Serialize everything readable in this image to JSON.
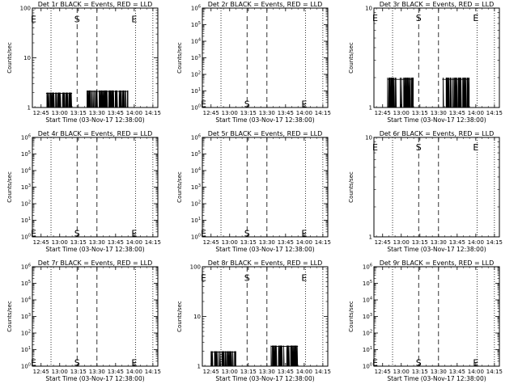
{
  "page": {
    "xlabel": "Start Time (03-Nov-17 12:38:00)",
    "ylabel": "Counts/sec",
    "x_ticks": [
      "12:45",
      "13:00",
      "13:15",
      "13:30",
      "13:45",
      "14:00",
      "14:15"
    ],
    "marker_S": "S",
    "marker_E": "E"
  },
  "chart_data": [
    {
      "type": "line",
      "title": "Det 1r BLACK = Events, RED = LLD",
      "xlabel": "Start Time (03-Nov-17 12:38:00)",
      "ylabel": "Counts/sec",
      "y_scale": "log",
      "y_ticks": [
        "1",
        "10",
        "100"
      ],
      "y_tick_values": [
        1,
        10,
        100
      ],
      "ylim": [
        1,
        100
      ],
      "xlim": [
        "12:38",
        "14:19"
      ],
      "dashed_lines": [
        "13:14",
        "13:30"
      ],
      "dotted_lines": [
        "12:53",
        "14:01",
        "14:15"
      ],
      "markers": [
        {
          "text": "E",
          "x": "12:39",
          "y": 60
        },
        {
          "text": "S",
          "x": "13:14",
          "y": 60
        },
        {
          "text": "E",
          "x": "14:00",
          "y": 60
        }
      ],
      "series": [
        {
          "color": "#000000",
          "segments": [
            {
              "from": "12:49",
              "to": "13:10",
              "low": 1,
              "high": 2
            },
            {
              "from": "13:22",
              "to": "13:55",
              "low": 1,
              "high": 2.2
            }
          ]
        }
      ]
    },
    {
      "type": "line",
      "title": "Det 2r BLACK = Events, RED = LLD",
      "xlabel": "Start Time (03-Nov-17 12:38:00)",
      "ylabel": "Counts/sec",
      "y_scale": "log",
      "y_ticks": [
        "10^0",
        "10^1",
        "10^2",
        "10^3",
        "10^4",
        "10^5",
        "10^6"
      ],
      "y_tick_values": [
        1,
        10,
        100,
        1000,
        10000,
        100000,
        1000000
      ],
      "ylim": [
        1,
        1000000
      ],
      "xlim": [
        "12:38",
        "14:19"
      ],
      "dashed_lines": [
        "13:14",
        "13:30"
      ],
      "dotted_lines": [
        "12:53",
        "14:01",
        "14:15"
      ],
      "markers": [
        {
          "text": "E",
          "x": "12:39",
          "y": 1.7
        },
        {
          "text": "S",
          "x": "13:14",
          "y": 1.7
        },
        {
          "text": "E",
          "x": "14:00",
          "y": 1.7
        }
      ],
      "series": []
    },
    {
      "type": "line",
      "title": "Det 3r BLACK = Events, RED = LLD",
      "xlabel": "Start Time (03-Nov-17 12:38:00)",
      "ylabel": "Counts/sec",
      "y_scale": "log",
      "y_ticks": [
        "1",
        "10"
      ],
      "y_tick_values": [
        1,
        10
      ],
      "ylim": [
        1,
        10
      ],
      "xlim": [
        "12:38",
        "14:19"
      ],
      "dashed_lines": [
        "13:14",
        "13:30"
      ],
      "dotted_lines": [
        "12:53",
        "14:01",
        "14:15"
      ],
      "markers": [
        {
          "text": "E",
          "x": "12:39",
          "y": 8
        },
        {
          "text": "S",
          "x": "13:14",
          "y": 8
        },
        {
          "text": "E",
          "x": "14:00",
          "y": 8
        }
      ],
      "series": [
        {
          "color": "#000000",
          "segments": [
            {
              "from": "12:49",
              "to": "13:10",
              "low": 1,
              "high": 2
            },
            {
              "from": "13:33",
              "to": "13:55",
              "low": 1,
              "high": 2
            }
          ]
        }
      ]
    },
    {
      "type": "line",
      "title": "Det 4r BLACK = Events, RED = LLD",
      "xlabel": "Start Time (03-Nov-17 12:38:00)",
      "ylabel": "Counts/sec",
      "y_scale": "log",
      "y_ticks": [
        "10^0",
        "10^1",
        "10^2",
        "10^3",
        "10^4",
        "10^5",
        "10^6"
      ],
      "y_tick_values": [
        1,
        10,
        100,
        1000,
        10000,
        100000,
        1000000
      ],
      "ylim": [
        1,
        1000000
      ],
      "xlim": [
        "12:38",
        "14:19"
      ],
      "dashed_lines": [
        "13:14",
        "13:30"
      ],
      "dotted_lines": [
        "12:53",
        "14:01",
        "14:15"
      ],
      "markers": [
        {
          "text": "E",
          "x": "12:39",
          "y": 1.7
        },
        {
          "text": "S",
          "x": "13:14",
          "y": 1.7
        },
        {
          "text": "E",
          "x": "14:00",
          "y": 1.7
        }
      ],
      "series": []
    },
    {
      "type": "line",
      "title": "Det 5r BLACK = Events, RED = LLD",
      "xlabel": "Start Time (03-Nov-17 12:38:00)",
      "ylabel": "Counts/sec",
      "y_scale": "log",
      "y_ticks": [
        "10^0",
        "10^1",
        "10^2",
        "10^3",
        "10^4",
        "10^5",
        "10^6"
      ],
      "y_tick_values": [
        1,
        10,
        100,
        1000,
        10000,
        100000,
        1000000
      ],
      "ylim": [
        1,
        1000000
      ],
      "xlim": [
        "12:38",
        "14:19"
      ],
      "dashed_lines": [
        "13:14",
        "13:30"
      ],
      "dotted_lines": [
        "12:53",
        "14:01",
        "14:15"
      ],
      "markers": [
        {
          "text": "E",
          "x": "12:39",
          "y": 1.7
        },
        {
          "text": "S",
          "x": "13:14",
          "y": 1.7
        },
        {
          "text": "E",
          "x": "14:00",
          "y": 1.7
        }
      ],
      "series": []
    },
    {
      "type": "line",
      "title": "Det 6r BLACK = Events, RED = LLD",
      "xlabel": "Start Time (03-Nov-17 12:38:00)",
      "ylabel": "Counts/sec",
      "y_scale": "log",
      "y_ticks": [
        "1",
        "10"
      ],
      "y_tick_values": [
        1,
        10
      ],
      "ylim": [
        1,
        10
      ],
      "xlim": [
        "12:38",
        "14:19"
      ],
      "dashed_lines": [
        "13:14",
        "13:30"
      ],
      "dotted_lines": [
        "12:53",
        "14:01",
        "14:15"
      ],
      "markers": [
        {
          "text": "E",
          "x": "12:39",
          "y": 8
        },
        {
          "text": "S",
          "x": "13:14",
          "y": 8
        },
        {
          "text": "E",
          "x": "14:00",
          "y": 8
        }
      ],
      "series": []
    },
    {
      "type": "line",
      "title": "Det 7r BLACK = Events, RED = LLD",
      "xlabel": "Start Time (03-Nov-17 12:38:00)",
      "ylabel": "Counts/sec",
      "y_scale": "log",
      "y_ticks": [
        "10^0",
        "10^1",
        "10^2",
        "10^3",
        "10^4",
        "10^5",
        "10^6"
      ],
      "y_tick_values": [
        1,
        10,
        100,
        1000,
        10000,
        100000,
        1000000
      ],
      "ylim": [
        1,
        1000000
      ],
      "xlim": [
        "12:38",
        "14:19"
      ],
      "dashed_lines": [
        "13:14",
        "13:30"
      ],
      "dotted_lines": [
        "12:53",
        "14:01",
        "14:15"
      ],
      "markers": [
        {
          "text": "E",
          "x": "12:39",
          "y": 1.7
        },
        {
          "text": "S",
          "x": "13:14",
          "y": 1.7
        },
        {
          "text": "E",
          "x": "14:00",
          "y": 1.7
        }
      ],
      "series": []
    },
    {
      "type": "line",
      "title": "Det 8r BLACK = Events, RED = LLD",
      "xlabel": "Start Time (03-Nov-17 12:38:00)",
      "ylabel": "Counts/sec",
      "y_scale": "log",
      "y_ticks": [
        "1",
        "10",
        "100"
      ],
      "y_tick_values": [
        1,
        10,
        100
      ],
      "ylim": [
        1,
        100
      ],
      "xlim": [
        "12:38",
        "14:19"
      ],
      "dashed_lines": [
        "13:14",
        "13:30"
      ],
      "dotted_lines": [
        "12:53",
        "14:01",
        "14:15"
      ],
      "markers": [
        {
          "text": "E",
          "x": "12:39",
          "y": 60
        },
        {
          "text": "S",
          "x": "13:14",
          "y": 60
        },
        {
          "text": "E",
          "x": "14:00",
          "y": 60
        }
      ],
      "series": [
        {
          "color": "#000000",
          "segments": [
            {
              "from": "12:45",
              "to": "13:05",
              "low": 1,
              "high": 2
            },
            {
              "from": "13:33",
              "to": "13:55",
              "low": 1,
              "high": 2.6
            }
          ]
        }
      ]
    },
    {
      "type": "line",
      "title": "Det 9r BLACK = Events, RED = LLD",
      "xlabel": "Start Time (03-Nov-17 12:38:00)",
      "ylabel": "Counts/sec",
      "y_scale": "log",
      "y_ticks": [
        "10^0",
        "10^1",
        "10^2",
        "10^3",
        "10^4",
        "10^5",
        "10^6"
      ],
      "y_tick_values": [
        1,
        10,
        100,
        1000,
        10000,
        100000,
        1000000
      ],
      "ylim": [
        1,
        1000000
      ],
      "xlim": [
        "12:38",
        "14:19"
      ],
      "dashed_lines": [
        "13:14",
        "13:30"
      ],
      "dotted_lines": [
        "12:53",
        "14:01",
        "14:15"
      ],
      "markers": [
        {
          "text": "E",
          "x": "12:39",
          "y": 1.7
        },
        {
          "text": "S",
          "x": "13:14",
          "y": 1.7
        },
        {
          "text": "E",
          "x": "14:00",
          "y": 1.7
        }
      ],
      "series": []
    }
  ]
}
